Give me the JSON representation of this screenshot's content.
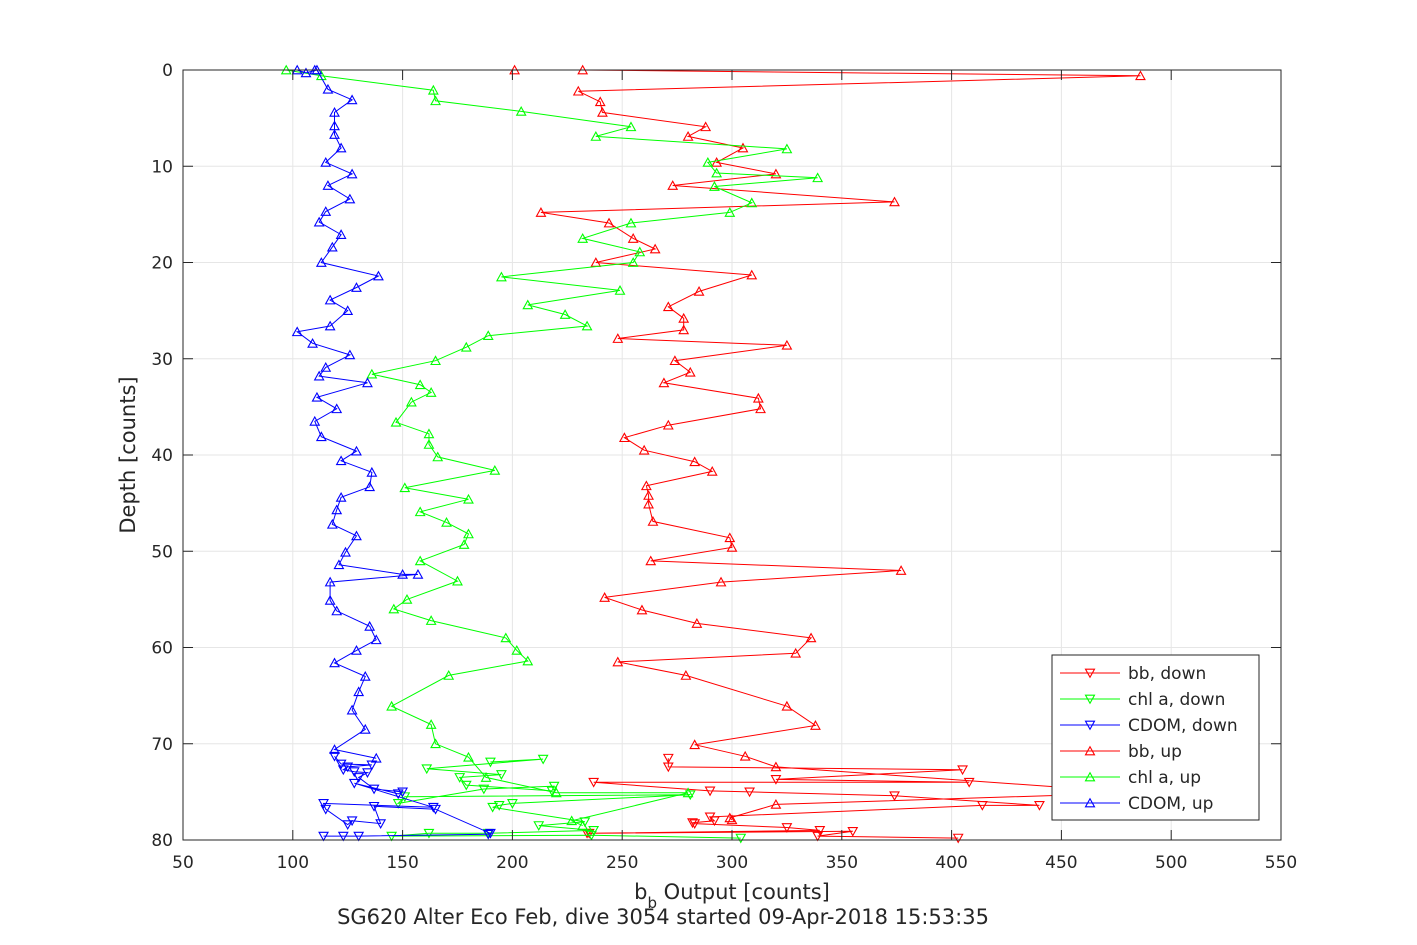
{
  "chart_data": {
    "type": "line",
    "title": "SG620 Alter Eco Feb, dive 3054 started 09-Apr-2018 15:53:35",
    "xlabel_main": "b",
    "xlabel_sub": "b",
    "xlabel_rest": " Output [counts]",
    "ylabel": "Depth [counts]",
    "xlim": [
      50,
      550
    ],
    "ylim": [
      0,
      80
    ],
    "y_reversed": true,
    "xticks": [
      "50",
      "100",
      "150",
      "200",
      "250",
      "300",
      "350",
      "400",
      "450",
      "500",
      "550"
    ],
    "yticks": [
      "0",
      "10",
      "20",
      "30",
      "40",
      "50",
      "60",
      "70",
      "80"
    ],
    "grid": true,
    "legend_position": "bottom-right",
    "series": [
      {
        "name": "bb, down",
        "color": "#ff0000",
        "marker": "triangle-down",
        "x": [
          403,
          339,
          355,
          235,
          234,
          340,
          325,
          283,
          282,
          292,
          290,
          414,
          440,
          374,
          308,
          290,
          237,
          408,
          320,
          405,
          271,
          271
        ],
        "y": [
          79.8,
          79.6,
          79.1,
          79.3,
          79.3,
          79.0,
          78.7,
          78.3,
          78.2,
          78.0,
          77.6,
          76.4,
          76.4,
          75.4,
          75.0,
          74.9,
          74.0,
          74.0,
          73.7,
          72.7,
          72.4,
          71.5
        ]
      },
      {
        "name": "chl a, down",
        "color": "#00ff00",
        "marker": "triangle-down",
        "x": [
          304,
          236,
          145,
          162,
          189,
          237,
          212,
          233,
          191,
          194,
          200,
          281,
          151,
          148,
          187,
          219,
          218,
          179,
          176,
          195,
          161,
          214,
          190
        ],
        "y": [
          79.8,
          79.5,
          79.6,
          79.3,
          79.3,
          79.0,
          78.5,
          78.1,
          76.6,
          76.4,
          76.2,
          75.3,
          75.5,
          76.2,
          74.7,
          74.4,
          74.9,
          74.3,
          73.5,
          73.2,
          72.6,
          71.6,
          71.9
        ]
      },
      {
        "name": "CDOM, down",
        "color": "#0000ff",
        "marker": "triangle-down",
        "x": [
          114,
          123,
          130,
          189,
          190,
          165,
          137,
          140,
          127,
          125,
          115,
          114,
          164,
          128,
          148,
          150,
          137,
          130,
          134,
          128,
          123,
          125,
          136,
          122,
          119
        ],
        "y": [
          79.6,
          79.6,
          79.6,
          79.4,
          79.3,
          76.8,
          76.5,
          78.3,
          78.0,
          78.4,
          76.8,
          76.2,
          76.6,
          74.1,
          75.2,
          75.0,
          74.7,
          73.5,
          73.0,
          72.9,
          72.7,
          72.4,
          72.2,
          72.1,
          71.3
        ]
      },
      {
        "name": "bb, up",
        "color": "#ff0000",
        "marker": "triangle-up",
        "x": [
          201,
          232,
          486,
          230,
          240,
          241,
          288,
          280,
          305,
          293,
          320,
          273,
          374,
          213,
          244,
          255,
          265,
          238,
          309,
          285,
          271,
          278,
          278,
          248,
          325,
          274,
          281,
          269,
          312,
          313,
          271,
          251,
          260,
          283,
          291,
          261,
          262,
          262,
          264,
          299,
          300,
          263,
          377,
          295,
          242,
          259,
          284,
          336,
          329,
          248,
          279,
          325,
          338,
          283,
          306,
          320,
          485,
          320,
          299,
          300
        ],
        "y": [
          0,
          0,
          0.6,
          2.2,
          3.3,
          4.4,
          5.9,
          6.9,
          8.1,
          9.6,
          10.8,
          12.0,
          13.7,
          14.8,
          15.9,
          17.5,
          18.6,
          20.0,
          21.3,
          23.0,
          24.6,
          25.8,
          27.0,
          27.9,
          28.6,
          30.2,
          31.4,
          32.5,
          34.1,
          35.2,
          36.9,
          38.2,
          39.5,
          40.7,
          41.7,
          43.2,
          44.2,
          45.1,
          46.9,
          48.6,
          49.6,
          51.0,
          52.0,
          53.2,
          54.8,
          56.1,
          57.5,
          59.0,
          60.6,
          61.5,
          62.9,
          66.1,
          68.1,
          70.1,
          71.3,
          72.4,
          75.1,
          76.3,
          77.7,
          77.9
        ]
      },
      {
        "name": "chl a, up",
        "color": "#00ff00",
        "marker": "triangle-up",
        "x": [
          97,
          113,
          164,
          165,
          204,
          254,
          238,
          325,
          289,
          293,
          339,
          292,
          309,
          299,
          254,
          232,
          258,
          255,
          195,
          249,
          207,
          224,
          234,
          189,
          179,
          165,
          136,
          158,
          163,
          154,
          147,
          162,
          162,
          166,
          192,
          151,
          180,
          158,
          170,
          180,
          178,
          158,
          175,
          152,
          146,
          163,
          197,
          202,
          207,
          171,
          145,
          163,
          165,
          180,
          188,
          220,
          280,
          227,
          232
        ],
        "y": [
          0,
          0.6,
          2.1,
          3.2,
          4.3,
          5.9,
          6.9,
          8.2,
          9.6,
          10.7,
          11.2,
          12.1,
          13.8,
          14.8,
          15.9,
          17.5,
          18.9,
          20.0,
          21.5,
          22.9,
          24.4,
          25.4,
          26.6,
          27.6,
          28.8,
          30.2,
          31.6,
          32.7,
          33.5,
          34.5,
          36.6,
          37.8,
          38.9,
          40.2,
          41.6,
          43.4,
          44.6,
          45.9,
          47.0,
          48.2,
          49.3,
          51.0,
          53.1,
          55.0,
          56.0,
          57.2,
          59.0,
          60.3,
          61.4,
          62.9,
          66.1,
          68.0,
          70.0,
          71.4,
          73.5,
          75.1,
          75.1,
          78.0,
          78.5
        ]
      },
      {
        "name": "CDOM, up",
        "color": "#0000ff",
        "marker": "triangle-up",
        "x": [
          110,
          102,
          106,
          111,
          116,
          127,
          119,
          119,
          119,
          122,
          115,
          127,
          116,
          126,
          115,
          112,
          122,
          118,
          113,
          139,
          129,
          117,
          125,
          117,
          102,
          109,
          126,
          115,
          112,
          134,
          111,
          120,
          110,
          113,
          129,
          122,
          136,
          135,
          122,
          120,
          118,
          129,
          124,
          121,
          150,
          157,
          117,
          117,
          120,
          135,
          138,
          129,
          119,
          133,
          130,
          127,
          133,
          119,
          138
        ],
        "y": [
          0,
          0,
          0.3,
          0,
          2.0,
          3.1,
          4.4,
          5.8,
          6.7,
          8.1,
          9.6,
          10.8,
          12.0,
          13.4,
          14.7,
          15.8,
          17.1,
          18.4,
          20.0,
          21.4,
          22.6,
          23.9,
          25.0,
          26.6,
          27.2,
          28.4,
          29.6,
          30.9,
          31.8,
          32.5,
          34.0,
          35.2,
          36.5,
          38.1,
          39.6,
          40.6,
          41.8,
          43.3,
          44.4,
          45.7,
          47.2,
          48.4,
          50.1,
          51.4,
          52.4,
          52.4,
          53.2,
          55.1,
          56.2,
          57.8,
          59.2,
          60.3,
          61.6,
          63.0,
          64.6,
          66.5,
          68.5,
          70.6,
          71.5
        ]
      }
    ]
  }
}
